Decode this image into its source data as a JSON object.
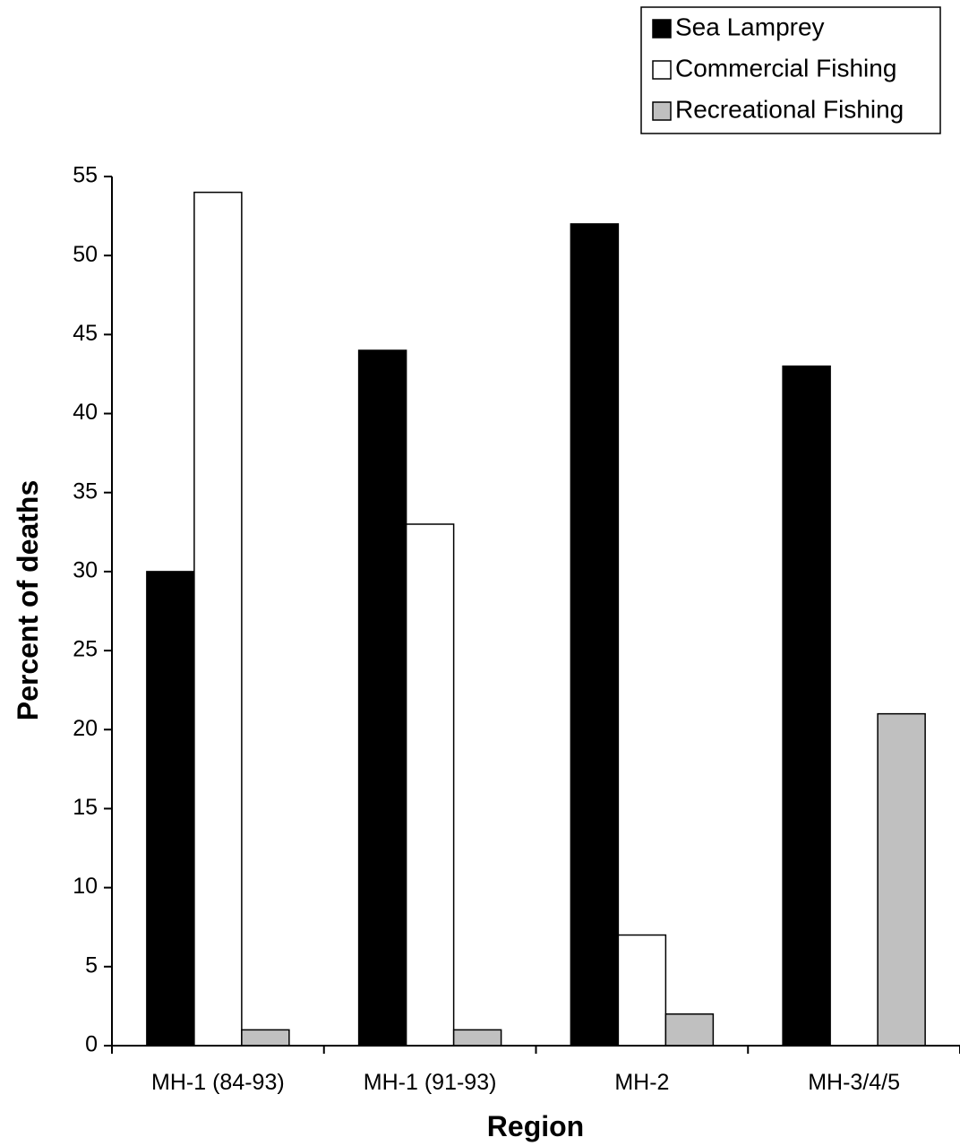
{
  "chart_data": {
    "type": "bar",
    "title": "",
    "xlabel": "Region",
    "ylabel": "Percent of deaths",
    "ylim": [
      0,
      55
    ],
    "yticks": [
      0,
      5,
      10,
      15,
      20,
      25,
      30,
      35,
      40,
      45,
      50,
      55
    ],
    "categories": [
      "MH-1 (84-93)",
      "MH-1 (91-93)",
      "MH-2",
      "MH-3/4/5"
    ],
    "series": [
      {
        "name": "Sea Lamprey",
        "color": "#000000",
        "values": [
          30,
          44,
          52,
          43
        ]
      },
      {
        "name": "Commercial Fishing",
        "color": "#ffffff",
        "values": [
          54,
          33,
          7,
          0
        ]
      },
      {
        "name": "Recreational Fishing",
        "color": "#c0c0c0",
        "values": [
          1,
          1,
          2,
          21
        ]
      }
    ],
    "legend_position": "top-right",
    "grid": false
  }
}
